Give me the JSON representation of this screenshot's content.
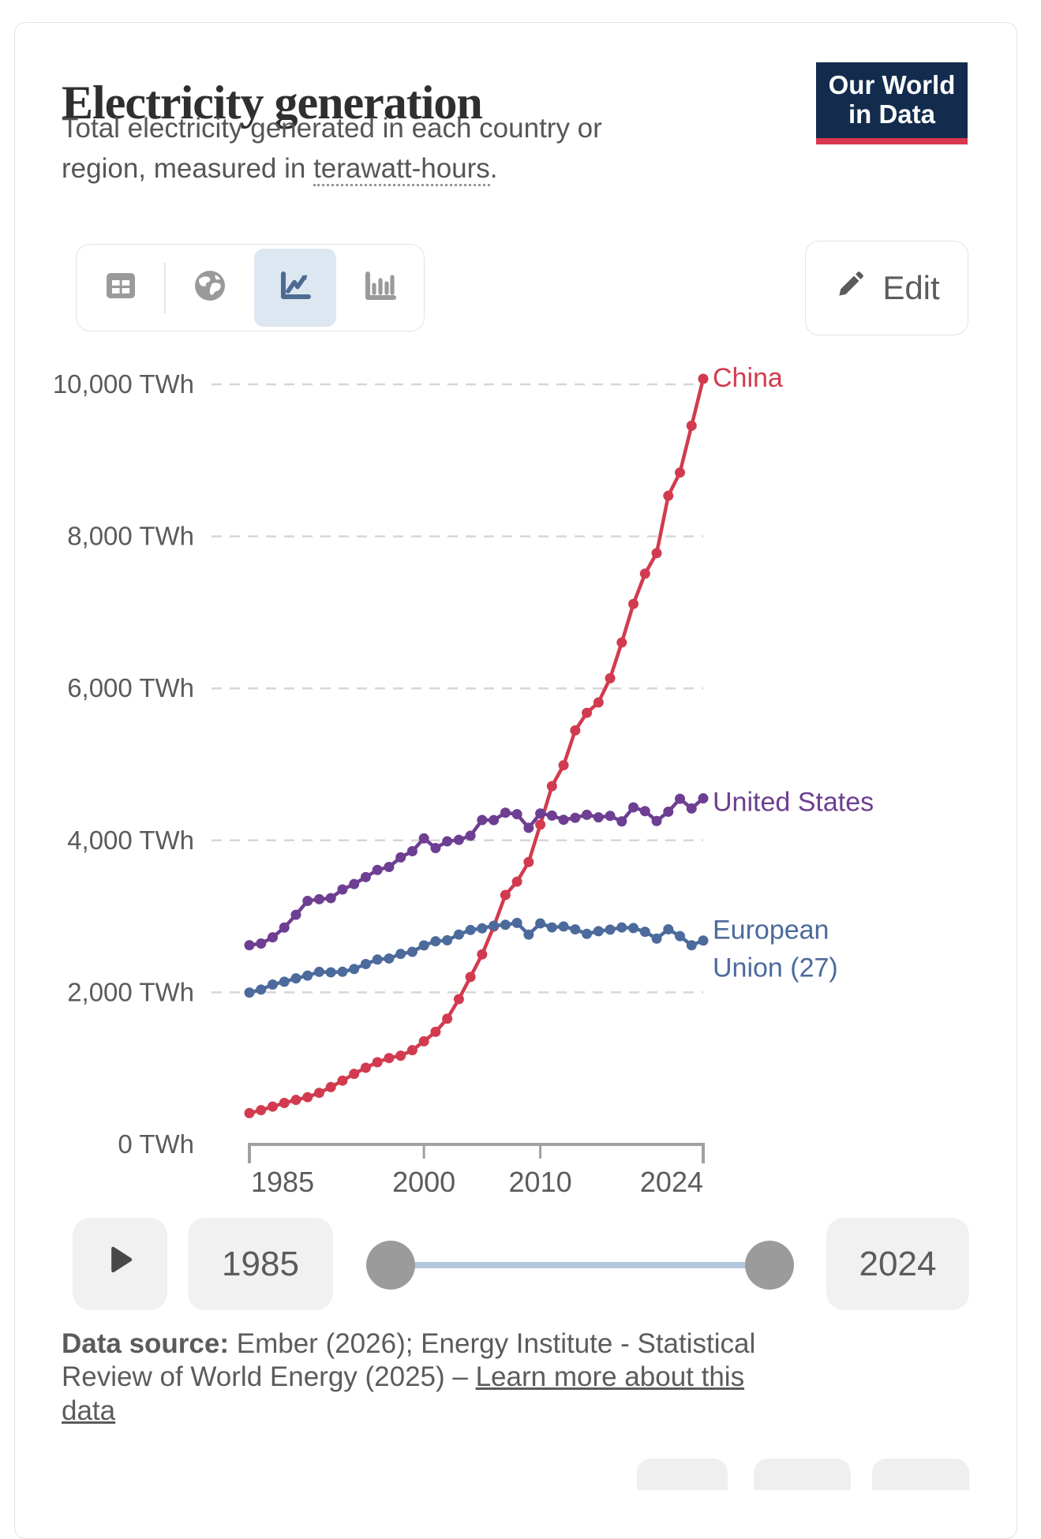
{
  "header": {
    "title": "Electricity generation",
    "subtitle_part1": "Total electricity generated in each country or region, measured in ",
    "subtitle_underlined": "terawatt-hours",
    "subtitle_part2": ".",
    "logo_line1": "Our World",
    "logo_line2": "in Data"
  },
  "toolbar": {
    "views": [
      "table",
      "globe",
      "line-chart",
      "bar-chart"
    ],
    "selected_view": "line-chart",
    "edit_label": "Edit"
  },
  "chart_data": {
    "type": "line",
    "title": "Electricity generation",
    "ylabel": "",
    "xlabel": "",
    "unit": "TWh",
    "ylim": [
      0,
      10000
    ],
    "xlim": [
      1985,
      2024
    ],
    "grid": "dashed-horizontal",
    "legend_position": "right-end-of-line",
    "yticks": [
      {
        "value": 0,
        "label": "0 TWh"
      },
      {
        "value": 2000,
        "label": "2,000 TWh"
      },
      {
        "value": 4000,
        "label": "4,000 TWh"
      },
      {
        "value": 6000,
        "label": "6,000 TWh"
      },
      {
        "value": 8000,
        "label": "8,000 TWh"
      },
      {
        "value": 10000,
        "label": "10,000 TWh"
      }
    ],
    "xticks": [
      {
        "value": 1985,
        "label": "1985",
        "align": "start"
      },
      {
        "value": 2000,
        "label": "2000",
        "align": "middle"
      },
      {
        "value": 2010,
        "label": "2010",
        "align": "middle"
      },
      {
        "value": 2024,
        "label": "2024",
        "align": "end"
      }
    ],
    "x": [
      1985,
      1986,
      1987,
      1988,
      1989,
      1990,
      1991,
      1992,
      1993,
      1994,
      1995,
      1996,
      1997,
      1998,
      1999,
      2000,
      2001,
      2002,
      2003,
      2004,
      2005,
      2006,
      2007,
      2008,
      2009,
      2010,
      2011,
      2012,
      2013,
      2014,
      2015,
      2016,
      2017,
      2018,
      2019,
      2020,
      2021,
      2022,
      2023,
      2024
    ],
    "series": [
      {
        "name": "China",
        "label_lines": [
          "China"
        ],
        "color": "#d23b4f",
        "values": [
          411,
          450,
          497,
          545,
          585,
          621,
          678,
          754,
          839,
          928,
          1008,
          1081,
          1136,
          1167,
          1239,
          1356,
          1481,
          1654,
          1911,
          2203,
          2500,
          2866,
          3282,
          3457,
          3715,
          4207,
          4713,
          4988,
          5447,
          5678,
          5815,
          6133,
          6604,
          7111,
          7509,
          7779,
          8534,
          8840,
          9456,
          10073
        ]
      },
      {
        "name": "United States",
        "label_lines": [
          "United States"
        ],
        "color": "#6d3e91",
        "values": [
          2621,
          2643,
          2724,
          2853,
          3021,
          3203,
          3226,
          3240,
          3354,
          3425,
          3517,
          3611,
          3650,
          3776,
          3858,
          4026,
          3899,
          3987,
          4007,
          4062,
          4268,
          4266,
          4364,
          4344,
          4165,
          4354,
          4326,
          4271,
          4297,
          4337,
          4303,
          4322,
          4250,
          4434,
          4385,
          4255,
          4377,
          4547,
          4420,
          4553
        ]
      },
      {
        "name": "European Union (27)",
        "label_lines": [
          "European",
          "Union (27)"
        ],
        "color": "#4c6a9c",
        "values": [
          1998,
          2037,
          2103,
          2140,
          2184,
          2221,
          2270,
          2264,
          2271,
          2308,
          2373,
          2432,
          2446,
          2506,
          2534,
          2618,
          2672,
          2685,
          2761,
          2821,
          2843,
          2877,
          2889,
          2914,
          2760,
          2907,
          2855,
          2867,
          2829,
          2770,
          2805,
          2826,
          2854,
          2846,
          2797,
          2708,
          2830,
          2740,
          2620,
          2682
        ]
      }
    ]
  },
  "timeline": {
    "start_year": "1985",
    "end_year": "2024"
  },
  "footer": {
    "source_label": "Data source:",
    "source_text": " Ember (2026); Energy Institute - Statistical Review of World Energy (2025) – ",
    "link_text": "Learn more about this data"
  },
  "colors": {
    "china": "#d23b4f",
    "united_states": "#6d3e91",
    "european_union": "#4c6a9c",
    "grid": "#d6d6d6",
    "axis": "#a1a1a1",
    "text": "#5b5b5b",
    "logo_navy": "#132c4e",
    "logo_red": "#d8374d",
    "selected_tile": "#dde7f1",
    "icon_gray": "#9a9a9a",
    "icon_selected": "#4d6b90"
  }
}
